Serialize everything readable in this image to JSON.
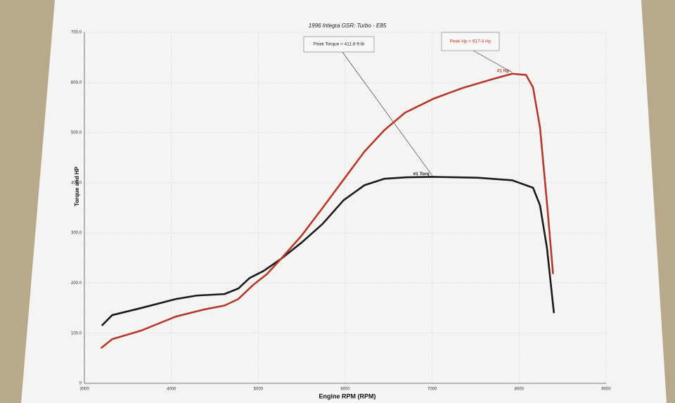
{
  "chart_data": {
    "type": "line",
    "title": "1996 Integra GSR: Turbo - E85",
    "x_label": "Engine RPM (RPM)",
    "y_label": "Torque and HP",
    "xlim": [
      3000,
      9000
    ],
    "xticks": [
      3000,
      4000,
      5000,
      6000,
      7000,
      8000,
      9000
    ],
    "ylim": [
      0,
      700
    ],
    "yticks": [
      0,
      {
        "value": 100,
        "label": "100.0"
      },
      {
        "value": 200,
        "label": "200.0"
      },
      {
        "value": 300,
        "label": "300.0"
      },
      {
        "value": 400,
        "label": "400.0"
      },
      {
        "value": 500,
        "label": "500.0"
      },
      {
        "value": 600,
        "label": "600.0"
      },
      {
        "value": 700,
        "label": "700.0"
      }
    ],
    "grid": true,
    "annotations": [
      {
        "text": "Peak Torque = 411.8 ft-lb",
        "color": "#222222"
      },
      {
        "text": "Peak Hp = 617.4 Hp",
        "color": "#c0392b"
      }
    ],
    "series": [
      {
        "name": "#1 Torq",
        "color": "#1a1a1a",
        "x": [
          3200,
          3320,
          3650,
          4050,
          4290,
          4610,
          4770,
          4900,
          5060,
          5260,
          5500,
          5740,
          5980,
          6220,
          6450,
          6710,
          7000,
          7520,
          7920,
          8160,
          8240,
          8320,
          8400
        ],
        "values": [
          115,
          136,
          150,
          168,
          175,
          178,
          189,
          210,
          224,
          248,
          281,
          318,
          365,
          395,
          408,
          411,
          411.8,
          410,
          405,
          390,
          355,
          270,
          140
        ]
      },
      {
        "name": "#1 Hp",
        "color": "#b5382c",
        "x": [
          3190,
          3320,
          3650,
          4050,
          4370,
          4610,
          4770,
          4940,
          5100,
          5260,
          5500,
          5740,
          5980,
          6220,
          6450,
          6690,
          7020,
          7350,
          7680,
          7920,
          8080,
          8160,
          8240,
          8320,
          8390
        ],
        "values": [
          70,
          88,
          105,
          133,
          147,
          155,
          168,
          196,
          218,
          248,
          295,
          350,
          406,
          462,
          505,
          540,
          568,
          589,
          606,
          617.4,
          615,
          590,
          510,
          360,
          218
        ]
      }
    ]
  }
}
